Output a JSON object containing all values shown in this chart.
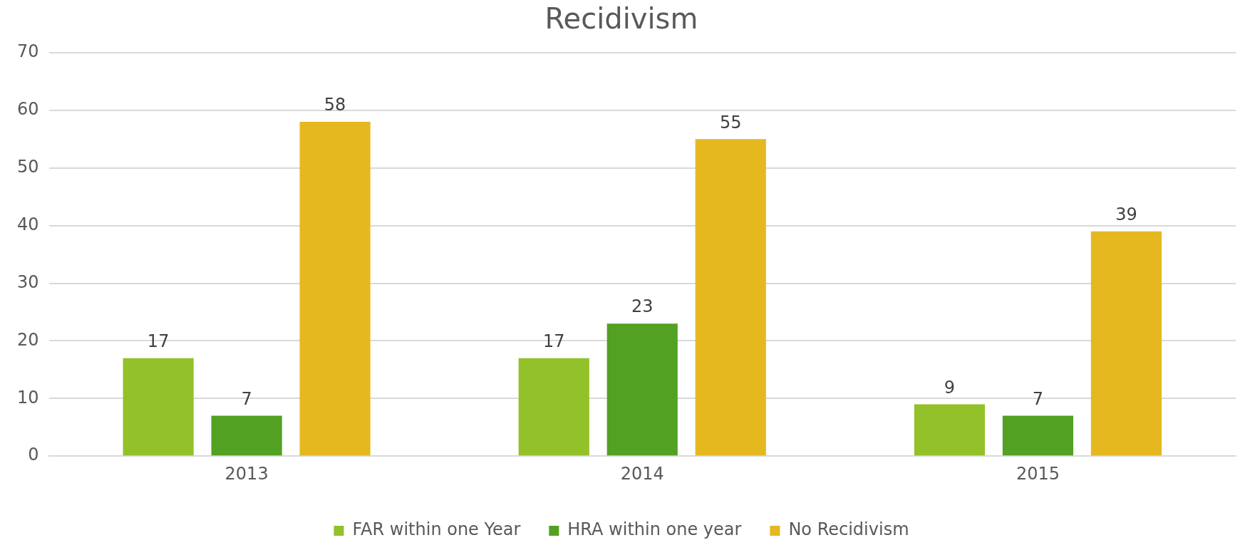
{
  "chart_data": {
    "type": "bar",
    "title": "Recidivism",
    "categories": [
      "2013",
      "2014",
      "2015"
    ],
    "series": [
      {
        "name": "FAR within one Year",
        "color": "#92c12a",
        "values": [
          17,
          17,
          9
        ]
      },
      {
        "name": "HRA within one year",
        "color": "#52a122",
        "values": [
          7,
          23,
          7
        ]
      },
      {
        "name": "No Recidivism",
        "color": "#e5b820",
        "values": [
          58,
          55,
          39
        ]
      }
    ],
    "ylim": [
      0,
      70
    ],
    "yticks": [
      0,
      10,
      20,
      30,
      40,
      50,
      60,
      70
    ],
    "grid": "y",
    "legend": "bottom",
    "data_labels": true
  }
}
